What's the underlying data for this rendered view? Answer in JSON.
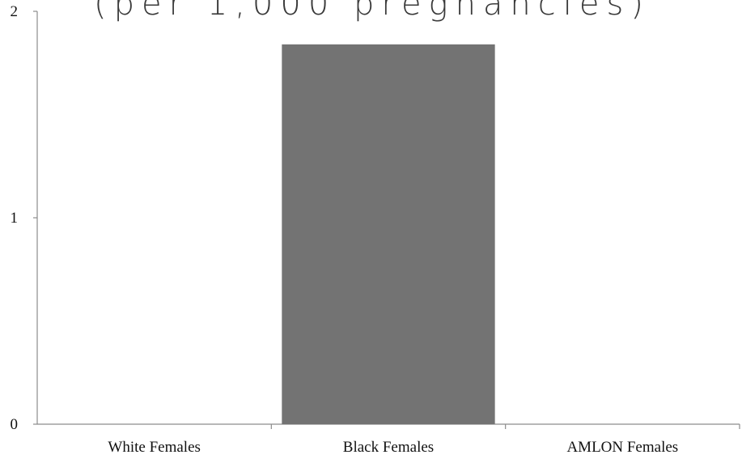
{
  "chart_data": {
    "type": "bar",
    "title": "",
    "subtitle": "(per 1,000 pregnancies)",
    "categories": [
      "White Females",
      "Black Females",
      "AMLON Females"
    ],
    "values": [
      0,
      1.84,
      0
    ],
    "ylim": [
      0,
      2
    ],
    "yticks": [
      "0",
      "1",
      "2"
    ],
    "xlabel": "",
    "ylabel": "",
    "grid": false,
    "bar_color": "#737373",
    "axis_color": "#8c8c8c"
  }
}
